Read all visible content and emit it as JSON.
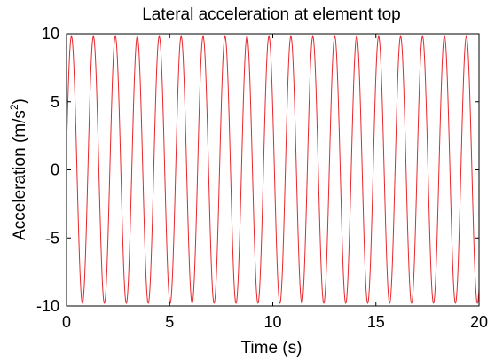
{
  "chart_data": {
    "type": "line",
    "title": "Lateral acceleration at element top",
    "xlabel": "Time (s)",
    "ylabel_main": "Acceleration (m/s",
    "ylabel_sup": "2",
    "ylabel_end": ")",
    "xlim": [
      0,
      20
    ],
    "ylim": [
      -10,
      10
    ],
    "xticks": [
      0,
      5,
      10,
      15,
      20
    ],
    "yticks": [
      -10,
      -5,
      0,
      5,
      10
    ],
    "xtick_labels": [
      "0",
      "5",
      "10",
      "15",
      "20"
    ],
    "ytick_labels": [
      "-10",
      "-5",
      "0",
      "5",
      "10"
    ],
    "grid": false,
    "series": [
      {
        "color": "#e8262b",
        "signal": {
          "form": "sinusoid",
          "amplitude": 9.8,
          "frequency_hz": 0.94,
          "phase_rad": 0.16,
          "t_start": 0,
          "t_end": 20
        }
      }
    ]
  }
}
